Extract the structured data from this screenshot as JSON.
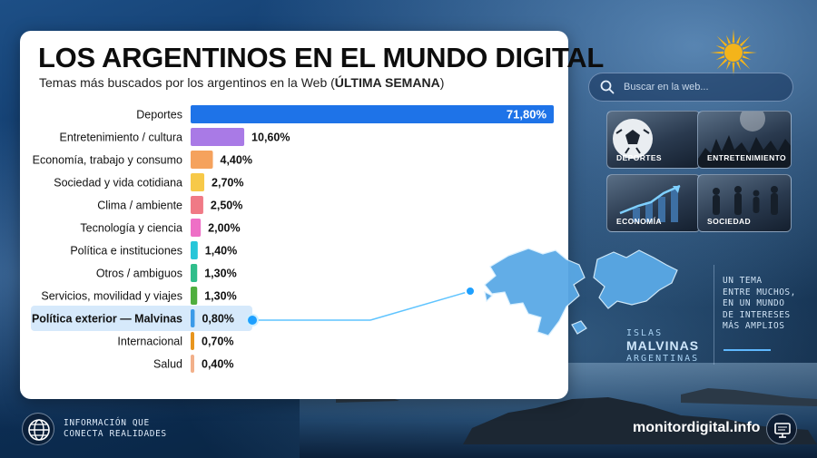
{
  "header": {
    "title": "LOS ARGENTINOS EN EL MUNDO DIGITAL",
    "subtitle_main": "Temas más buscados por los argentinos en la Web (",
    "subtitle_bold": "ÚLTIMA SEMANA",
    "subtitle_end": ")"
  },
  "chart_data": {
    "type": "bar",
    "orientation": "horizontal",
    "categories": [
      "Deportes",
      "Entretenimiento / cultura",
      "Economía, trabajo y consumo",
      "Sociedad y vida cotidiana",
      "Clima / ambiente",
      "Tecnología y ciencia",
      "Política e instituciones",
      "Otros / ambiguos",
      "Servicios, movilidad y viajes",
      "Política exterior — Malvinas",
      "Internacional",
      "Salud"
    ],
    "values": [
      71.8,
      10.6,
      4.4,
      2.7,
      2.5,
      2.0,
      1.4,
      1.3,
      1.3,
      0.8,
      0.7,
      0.4
    ],
    "value_labels": [
      "71,80%",
      "10,60%",
      "4,40%",
      "2,70%",
      "2,50%",
      "2,00%",
      "1,40%",
      "1,30%",
      "1,30%",
      "0,80%",
      "0,70%",
      "0,40%"
    ],
    "colors": [
      "#1e73e8",
      "#a97ae6",
      "#f5a25d",
      "#f7c948",
      "#f07a86",
      "#ee6fc6",
      "#27c6d9",
      "#2fbd8a",
      "#4fae3e",
      "#3b9ae8",
      "#e8951e",
      "#f2b08a"
    ],
    "highlight": "Política exterior — Malvinas",
    "unit": "%",
    "xlim": [
      0,
      71.8
    ]
  },
  "search": {
    "placeholder": "Buscar en la web..."
  },
  "tiles": [
    {
      "label": "DEPORTES",
      "icon": "football-icon"
    },
    {
      "label": "ENTRETENIMIENTO",
      "icon": "concert-crowd-icon"
    },
    {
      "label": "ECONOMÍA",
      "icon": "growth-chart-icon"
    },
    {
      "label": "SOCIEDAD",
      "icon": "people-walking-icon"
    }
  ],
  "malvinas": {
    "line1": "ISLAS",
    "line2": "MALVINAS",
    "line3": "ARGENTINAS"
  },
  "note": {
    "line1": "UN TEMA",
    "line2": "ENTRE MUCHOS,",
    "line3": "EN UN MUNDO",
    "line4": "DE INTERESES",
    "line5": "MÁS AMPLIOS"
  },
  "footer": {
    "line1": "INFORMACIÓN QUE",
    "line2": "CONECTA REALIDADES",
    "brand": "monitordigital.info"
  },
  "colors": {
    "accent": "#1e73e8",
    "highlight_row": "#d6e9fb",
    "connector": "#5fc4ff"
  }
}
